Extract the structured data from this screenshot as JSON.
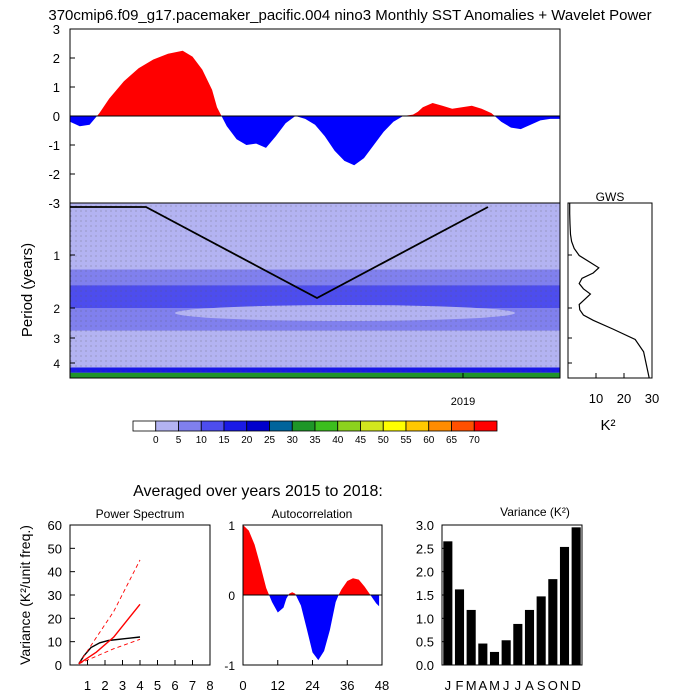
{
  "page_title": "370cmip6.f09_g17.pacemaker_pacific.004 nino3 Monthly SST Anomalies + Wavelet Power",
  "averaged_title": "Averaged over years 2015 to 2018:",
  "chart_data": [
    {
      "id": "sst_anomaly",
      "type": "area",
      "title": "370cmip6.f09_g17.pacemaker_pacific.004 nino3 Monthly SST Anomalies + Wavelet Power",
      "ylim": [
        -3,
        3
      ],
      "yticks": [
        "3",
        "2",
        "1",
        "0",
        "-1",
        "-2",
        "-3"
      ],
      "x_pos": [
        0,
        2,
        4,
        6,
        8,
        11,
        14,
        17,
        20,
        23,
        25,
        27,
        29,
        30,
        32,
        34,
        36,
        38,
        40,
        42,
        44,
        46,
        48,
        50,
        52,
        54,
        56,
        58,
        60,
        62,
        64,
        66,
        68,
        70,
        71,
        72,
        74,
        76,
        78,
        80,
        82,
        84,
        86,
        88,
        90,
        92,
        94,
        96,
        98,
        100
      ],
      "values": [
        -0.2,
        -0.35,
        -0.3,
        0.1,
        0.6,
        1.2,
        1.65,
        1.95,
        2.15,
        2.25,
        2.05,
        1.6,
        0.9,
        0.3,
        -0.35,
        -0.8,
        -1.0,
        -0.95,
        -1.1,
        -0.7,
        -0.25,
        0.0,
        -0.1,
        -0.3,
        -0.7,
        -1.2,
        -1.55,
        -1.7,
        -1.45,
        -1.0,
        -0.55,
        -0.2,
        0.0,
        0.05,
        0.15,
        0.3,
        0.45,
        0.35,
        0.25,
        0.3,
        0.35,
        0.25,
        0.1,
        -0.2,
        -0.4,
        -0.45,
        -0.3,
        -0.15,
        -0.1,
        -0.1
      ],
      "colors": {
        "positive": "#ff0000",
        "negative": "#0000ff"
      }
    },
    {
      "id": "wavelet_power",
      "type": "heatmap",
      "ylabel": "Period (years)",
      "yticks": [
        "1",
        "2",
        "3",
        "4"
      ],
      "xticks": [
        "2019"
      ],
      "colorbar": {
        "labels": [
          "0",
          "5",
          "10",
          "15",
          "20",
          "25",
          "30",
          "35",
          "40",
          "45",
          "50",
          "55",
          "60",
          "65",
          "70"
        ],
        "colors": [
          "#ffffff",
          "#b3b3f2",
          "#8080ee",
          "#4d4dee",
          "#1a1ae6",
          "#0000cd",
          "#00649b",
          "#1e9628",
          "#3cbe1e",
          "#8cd21e",
          "#d2e61e",
          "#ffff00",
          "#ffc800",
          "#ff8c00",
          "#ff5000",
          "#ff0000"
        ]
      },
      "bands": [
        {
          "lo": 0.0,
          "hi": 0.38,
          "color": "#b3b3f2"
        },
        {
          "lo": 0.38,
          "hi": 0.47,
          "color": "#8080ee"
        },
        {
          "lo": 0.47,
          "hi": 0.6,
          "color": "#4d4dee"
        },
        {
          "lo": 0.6,
          "hi": 0.73,
          "color": "#8080ee"
        },
        {
          "lo": 0.73,
          "hi": 0.94,
          "color": "#b3b3f2"
        },
        {
          "lo": 0.94,
          "hi": 0.97,
          "color": "#1a1ae6"
        },
        {
          "lo": 0.97,
          "hi": 1.0,
          "color": "#1e9628"
        }
      ]
    },
    {
      "id": "gws",
      "type": "line",
      "title": "GWS",
      "xlabel": "K²",
      "xlim": [
        0,
        30
      ],
      "xticks": [
        "10",
        "20",
        "30"
      ],
      "period_frac": [
        0.0,
        0.06,
        0.12,
        0.18,
        0.22,
        0.26,
        0.3,
        0.34,
        0.37,
        0.4,
        0.43,
        0.46,
        0.49,
        0.52,
        0.55,
        0.58,
        0.61,
        0.64,
        0.67,
        0.72,
        0.78,
        0.85,
        1.0
      ],
      "values": [
        0.6,
        0.6,
        0.7,
        0.9,
        1.3,
        2.2,
        4,
        8,
        11,
        9,
        5,
        4,
        5.5,
        8,
        6,
        4,
        4.2,
        5.5,
        9,
        16,
        24,
        27,
        29
      ]
    },
    {
      "id": "power_spectrum",
      "type": "line",
      "title": "Power Spectrum",
      "ylabel": "Variance (K²/unit freq.)",
      "ylim": [
        0,
        60
      ],
      "yticks": [
        "0",
        "10",
        "20",
        "30",
        "40",
        "50",
        "60"
      ],
      "xticks": [
        "1",
        "2",
        "3",
        "4",
        "5",
        "6",
        "7",
        "8"
      ],
      "xlim": [
        0,
        8
      ],
      "series": [
        {
          "color": "#000000",
          "x": [
            0.5,
            0.8,
            1.2,
            1.7,
            2.2,
            4.0
          ],
          "values": [
            0.5,
            4,
            7.5,
            9.5,
            10.5,
            12
          ]
        },
        {
          "color": "#ff0000",
          "x": [
            0.5,
            1.5,
            2.5,
            4.0
          ],
          "values": [
            0.5,
            5.5,
            12,
            26
          ]
        },
        {
          "color": "#ff0000",
          "dashed": true,
          "x": [
            0.5,
            2.5,
            4.0
          ],
          "values": [
            0.5,
            23,
            45
          ]
        },
        {
          "color": "#ff0000",
          "dashed": true,
          "x": [
            0.5,
            2.5,
            4.0
          ],
          "values": [
            0.5,
            7,
            11
          ]
        }
      ]
    },
    {
      "id": "autocorrelation",
      "type": "area",
      "title": "Autocorrelation",
      "ylim": [
        -1,
        1
      ],
      "yticks": [
        "1",
        "0",
        "-1"
      ],
      "xlim": [
        0,
        48
      ],
      "xticks": [
        "0",
        "12",
        "24",
        "36",
        "48"
      ],
      "lags": [
        0,
        2,
        4,
        6,
        8,
        9,
        10,
        12,
        14,
        15,
        16,
        17,
        18,
        20,
        22,
        24,
        26,
        28,
        30,
        32,
        33,
        34,
        36,
        38,
        40,
        42,
        44,
        46,
        47
      ],
      "values": [
        1.0,
        0.92,
        0.72,
        0.42,
        0.1,
        0.0,
        -0.1,
        -0.25,
        -0.18,
        -0.05,
        0.02,
        0.04,
        0.02,
        -0.15,
        -0.48,
        -0.82,
        -0.93,
        -0.8,
        -0.5,
        -0.1,
        0.0,
        0.08,
        0.2,
        0.24,
        0.22,
        0.12,
        0.0,
        -0.12,
        -0.16
      ]
    },
    {
      "id": "monthly_variance",
      "type": "bar",
      "title": "Variance (K²)",
      "ylim": [
        0,
        3
      ],
      "yticks": [
        "0.0",
        "0.5",
        "1.0",
        "1.5",
        "2.0",
        "2.5",
        "3.0"
      ],
      "categories": [
        "J",
        "F",
        "M",
        "A",
        "M",
        "J",
        "J",
        "A",
        "S",
        "O",
        "N",
        "D"
      ],
      "values": [
        2.65,
        1.62,
        1.18,
        0.46,
        0.28,
        0.53,
        0.88,
        1.18,
        1.47,
        1.84,
        2.53,
        2.95
      ],
      "bar_color": "#000000"
    }
  ]
}
